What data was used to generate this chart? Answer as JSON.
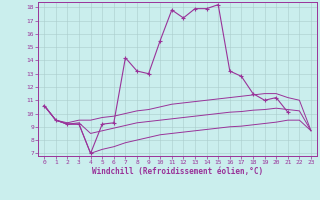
{
  "background_color": "#caeeed",
  "line_color": "#993399",
  "grid_color": "#aacccc",
  "xlabel": "Windchill (Refroidissement éolien,°C)",
  "xlim": [
    -0.5,
    23.5
  ],
  "ylim": [
    6.8,
    18.4
  ],
  "xticks": [
    0,
    1,
    2,
    3,
    4,
    5,
    6,
    7,
    8,
    9,
    10,
    11,
    12,
    13,
    14,
    15,
    16,
    17,
    18,
    19,
    20,
    21,
    22,
    23
  ],
  "yticks": [
    7,
    8,
    9,
    10,
    11,
    12,
    13,
    14,
    15,
    16,
    17,
    18
  ],
  "main_x": [
    0,
    1,
    2,
    3,
    4,
    5,
    6,
    7,
    8,
    9,
    10,
    11,
    12,
    13,
    14,
    15,
    16,
    17,
    18,
    19,
    20,
    21
  ],
  "main_y": [
    10.6,
    9.5,
    9.2,
    9.2,
    7.0,
    9.2,
    9.3,
    14.2,
    13.2,
    13.0,
    15.5,
    17.8,
    17.2,
    17.9,
    17.9,
    18.2,
    13.2,
    12.8,
    11.5,
    11.0,
    11.2,
    10.1
  ],
  "upper_x": [
    0,
    1,
    2,
    3,
    4,
    5,
    6,
    7,
    8,
    9,
    10,
    11,
    12,
    13,
    14,
    15,
    16,
    17,
    18,
    19,
    20,
    21,
    22,
    23
  ],
  "upper_y": [
    10.6,
    9.5,
    9.3,
    9.5,
    9.5,
    9.7,
    9.8,
    10.0,
    10.2,
    10.3,
    10.5,
    10.7,
    10.8,
    10.9,
    11.0,
    11.1,
    11.2,
    11.3,
    11.4,
    11.5,
    11.5,
    11.2,
    11.0,
    8.7
  ],
  "mid_x": [
    0,
    1,
    2,
    3,
    4,
    5,
    6,
    7,
    8,
    9,
    10,
    11,
    12,
    13,
    14,
    15,
    16,
    17,
    18,
    19,
    20,
    21,
    22,
    23
  ],
  "mid_y": [
    10.6,
    9.5,
    9.2,
    9.3,
    8.5,
    8.7,
    8.9,
    9.1,
    9.3,
    9.4,
    9.5,
    9.6,
    9.7,
    9.8,
    9.9,
    10.0,
    10.1,
    10.15,
    10.25,
    10.3,
    10.4,
    10.3,
    10.2,
    8.7
  ],
  "lower_x": [
    0,
    1,
    2,
    3,
    4,
    5,
    6,
    7,
    8,
    9,
    10,
    11,
    12,
    13,
    14,
    15,
    16,
    17,
    18,
    19,
    20,
    21,
    22,
    23
  ],
  "lower_y": [
    10.6,
    9.5,
    9.2,
    9.2,
    7.0,
    7.3,
    7.5,
    7.8,
    8.0,
    8.2,
    8.4,
    8.5,
    8.6,
    8.7,
    8.8,
    8.9,
    9.0,
    9.05,
    9.15,
    9.25,
    9.35,
    9.5,
    9.5,
    8.7
  ]
}
